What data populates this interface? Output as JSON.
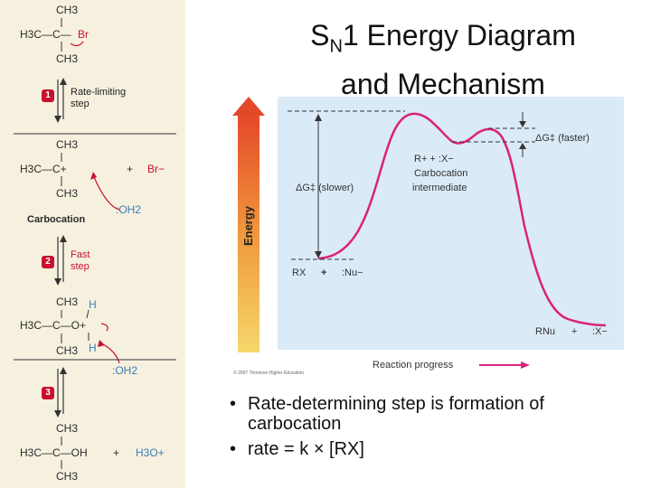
{
  "title": {
    "prefix": "S",
    "sub": "N",
    "rest": "1 Energy Diagram",
    "line2": "and Mechanism"
  },
  "diagram": {
    "y_axis_label": "Energy",
    "x_axis_label": "Reaction progress",
    "copyright": "© 2007 Thomson Higher Education",
    "delta_g_slow": "ΔG‡ (slower)",
    "delta_g_fast": "ΔG‡ (faster)",
    "intermediate_line1": "R+  +  :X−",
    "intermediate_line2": "Carbocation",
    "intermediate_line3": "intermediate",
    "reactants_rx": "RX",
    "reactants_plus": "+",
    "reactants_nu": ":Nu−",
    "products_rnu": "RNu",
    "products_plus": "+",
    "products_x": ":X−",
    "colors": {
      "curve": "#d9237a",
      "panel": "#dbeaf7",
      "arrow_top": "#e4482a",
      "arrow_bottom": "#f5d76b"
    }
  },
  "mechanism": {
    "m1_top": "CH3",
    "m1_mid_left": "H3C—C—",
    "m1_mid_right": "Br",
    "m1_bottom": "CH3",
    "step1_num": "1",
    "step1_text1": "Rate-limiting",
    "step1_text2": "step",
    "m2_top": "CH3",
    "m2_mid": "H3C—C+",
    "m2_plus": "+",
    "m2_br": "Br−",
    "m2_bottom": "CH3",
    "m2_water": ":OH2",
    "m2_label": "Carbocation",
    "step2_num": "2",
    "step2_text1": "Fast",
    "step2_text2": "step",
    "m3_top": "CH3",
    "m3_h1": "H",
    "m3_mid": "H3C—C—O+",
    "m3_bottom": "CH3",
    "m3_h2": "H",
    "m3_water": ":OH2",
    "step3_num": "3",
    "m4_top": "CH3",
    "m4_mid": "H3C—C—OH",
    "m4_plus": "+",
    "m4_h3o": "H3O+",
    "m4_bottom": "CH3"
  },
  "bullets": [
    "Rate-determining step is formation of carbocation",
    "rate = k × [RX]"
  ]
}
